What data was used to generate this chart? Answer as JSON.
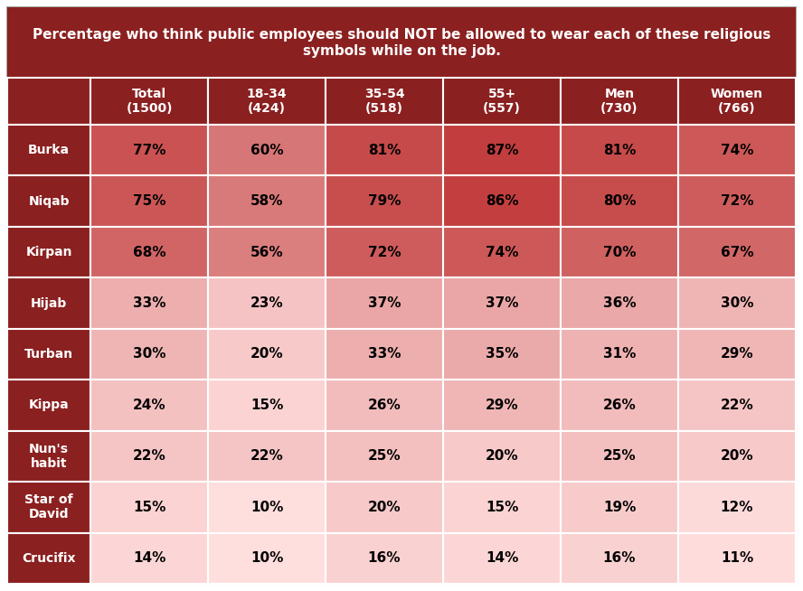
{
  "title_line1": "Percentage who think public employees should NOT be allowed to wear each of these religious",
  "title_line2": "symbols while on the job.",
  "columns": [
    "",
    "Total\n(1500)",
    "18-34\n(424)",
    "35-54\n(518)",
    "55+\n(557)",
    "Men\n(730)",
    "Women\n(766)"
  ],
  "rows": [
    {
      "label": "Burka",
      "values": [
        "77%",
        "60%",
        "81%",
        "87%",
        "81%",
        "74%"
      ],
      "nums": [
        77,
        60,
        81,
        87,
        81,
        74
      ]
    },
    {
      "label": "Niqab",
      "values": [
        "75%",
        "58%",
        "79%",
        "86%",
        "80%",
        "72%"
      ],
      "nums": [
        75,
        58,
        79,
        86,
        80,
        72
      ]
    },
    {
      "label": "Kirpan",
      "values": [
        "68%",
        "56%",
        "72%",
        "74%",
        "70%",
        "67%"
      ],
      "nums": [
        68,
        56,
        72,
        74,
        70,
        67
      ]
    },
    {
      "label": "Hijab",
      "values": [
        "33%",
        "23%",
        "37%",
        "37%",
        "36%",
        "30%"
      ],
      "nums": [
        33,
        23,
        37,
        37,
        36,
        30
      ]
    },
    {
      "label": "Turban",
      "values": [
        "30%",
        "20%",
        "33%",
        "35%",
        "31%",
        "29%"
      ],
      "nums": [
        30,
        20,
        33,
        35,
        31,
        29
      ]
    },
    {
      "label": "Kippa",
      "values": [
        "24%",
        "15%",
        "26%",
        "29%",
        "26%",
        "22%"
      ],
      "nums": [
        24,
        15,
        26,
        29,
        26,
        22
      ]
    },
    {
      "label": "Nun's\nhabit",
      "values": [
        "22%",
        "22%",
        "25%",
        "20%",
        "25%",
        "20%"
      ],
      "nums": [
        22,
        22,
        25,
        20,
        25,
        20
      ]
    },
    {
      "label": "Star of\nDavid",
      "values": [
        "15%",
        "10%",
        "20%",
        "15%",
        "19%",
        "12%"
      ],
      "nums": [
        15,
        10,
        20,
        15,
        19,
        12
      ]
    },
    {
      "label": "Crucifix",
      "values": [
        "14%",
        "10%",
        "16%",
        "14%",
        "16%",
        "11%"
      ],
      "nums": [
        14,
        10,
        16,
        14,
        16,
        11
      ]
    }
  ],
  "title_bg": "#8B2020",
  "header_bg": "#8B2020",
  "row_label_bg": "#8B2020",
  "title_color": "#FFFFFF",
  "header_color": "#FFFFFF",
  "row_label_color": "#FFFFFF",
  "cell_text_color": "#000000",
  "border_color": "#FFFFFF",
  "outer_border_color": "#AAAAAA",
  "min_val": 10,
  "max_val": 87,
  "low_color": [
    1.0,
    0.87,
    0.87
  ],
  "high_color": [
    0.76,
    0.24,
    0.24
  ],
  "fig_width": 8.88,
  "fig_height": 6.54,
  "dpi": 100
}
